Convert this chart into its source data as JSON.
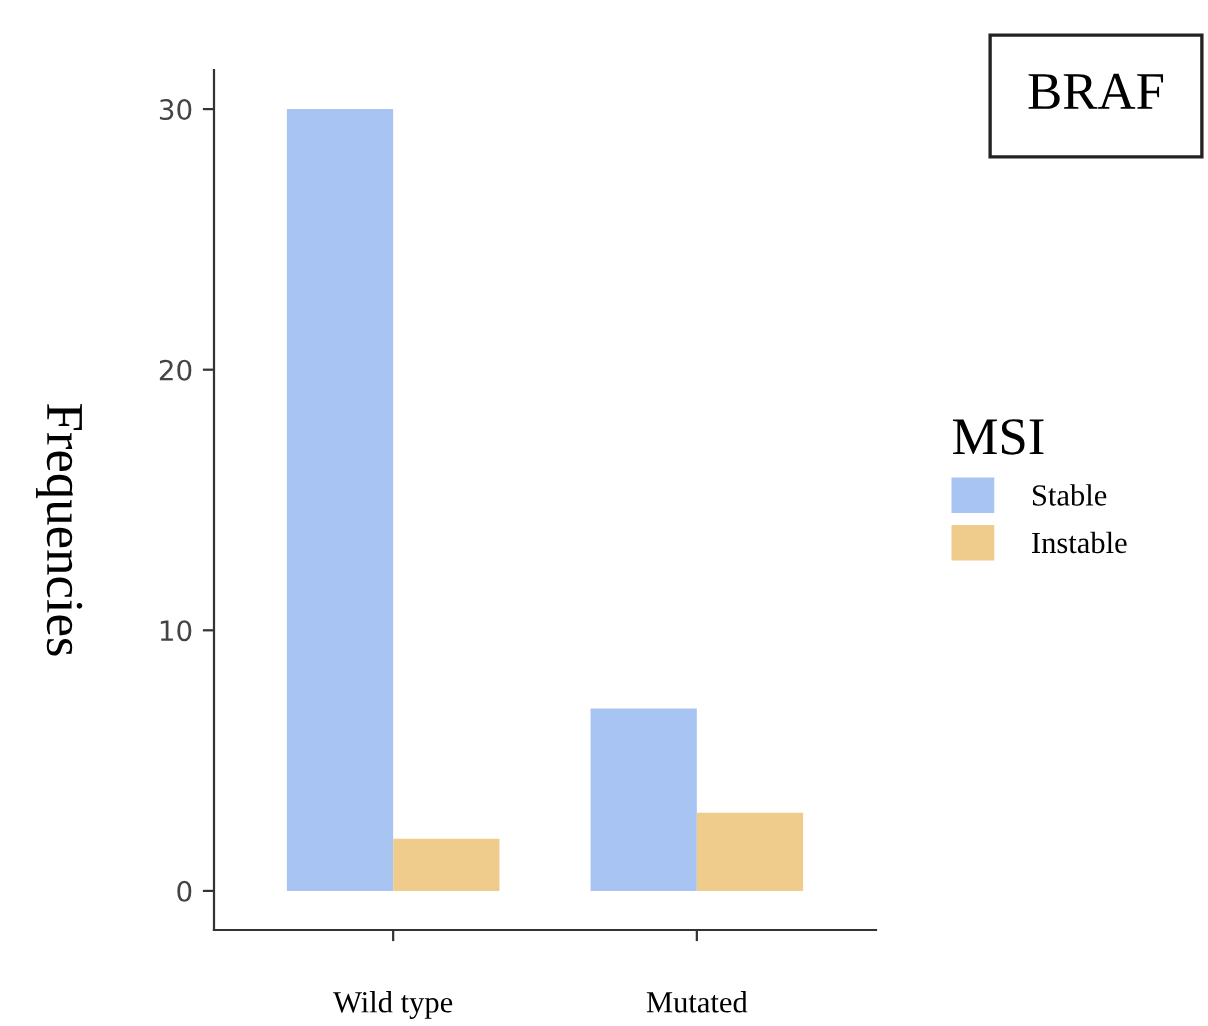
{
  "chart_data": {
    "type": "bar",
    "title": "BRAF",
    "ylabel": "Frequencies",
    "legend_title": "MSI",
    "categories": [
      "Wild type",
      "Mutated"
    ],
    "series": [
      {
        "name": "Stable",
        "color": "#a7c4f2",
        "values": [
          30,
          7
        ]
      },
      {
        "name": "Instable",
        "color": "#f0cc8c",
        "values": [
          2,
          3
        ]
      }
    ],
    "ylim": [
      -1.5,
      31.5
    ],
    "yticks": [
      0,
      10,
      20,
      30
    ],
    "grid": false,
    "legend": "right"
  }
}
